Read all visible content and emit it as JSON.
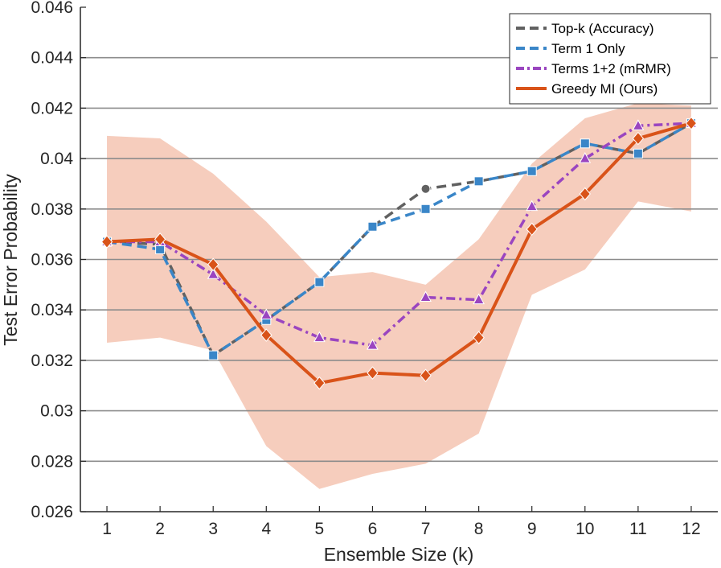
{
  "chart_data": {
    "type": "line",
    "title": "",
    "xlabel": "Ensemble Size (k)",
    "ylabel": "Test Error Probability",
    "xlim": [
      0.5,
      12.5
    ],
    "ylim": [
      0.026,
      0.046
    ],
    "xticks": [
      1,
      2,
      3,
      4,
      5,
      6,
      7,
      8,
      9,
      10,
      11,
      12
    ],
    "yticks": [
      0.026,
      0.028,
      0.03,
      0.032,
      0.034,
      0.036,
      0.038,
      0.04,
      0.042,
      0.044,
      0.046
    ],
    "ytick_labels": [
      "0.026",
      "0.028",
      "0.03",
      "0.032",
      "0.034",
      "0.036",
      "0.038",
      "0.04",
      "0.042",
      "0.044",
      "0.046"
    ],
    "grid": "y",
    "legend_position": "top-right",
    "band": {
      "name": "Greedy MI (Ours) spread",
      "color": "#f4c4b2",
      "x": [
        1,
        2,
        3,
        4,
        5,
        6,
        7,
        8,
        9,
        10,
        11,
        12
      ],
      "upper": [
        0.0409,
        0.0408,
        0.0394,
        0.0375,
        0.0353,
        0.0355,
        0.035,
        0.0368,
        0.0398,
        0.0416,
        0.0422,
        0.0421
      ],
      "lower": [
        0.0327,
        0.0329,
        0.0324,
        0.0286,
        0.0269,
        0.0275,
        0.0279,
        0.0291,
        0.0346,
        0.0356,
        0.0383,
        0.0379
      ]
    },
    "series": [
      {
        "name": "Top-k (Accuracy)",
        "color": "#616161",
        "dash": "dashed",
        "marker": "circle",
        "x": [
          1,
          2,
          3,
          4,
          5,
          6,
          7,
          8,
          9,
          10,
          11,
          12
        ],
        "values": [
          0.0367,
          0.0366,
          0.0322,
          0.0336,
          0.0351,
          0.0373,
          0.0388,
          0.0391,
          0.0395,
          0.0406,
          0.0402,
          0.0414
        ],
        "marker_indices": [
          6
        ]
      },
      {
        "name": "Term 1 Only",
        "color": "#3a86c8",
        "dash": "dashed",
        "marker": "square",
        "x": [
          1,
          2,
          3,
          4,
          5,
          6,
          7,
          8,
          9,
          10,
          11,
          12
        ],
        "values": [
          0.0367,
          0.0364,
          0.0322,
          0.0336,
          0.0351,
          0.0373,
          0.038,
          0.0391,
          0.0395,
          0.0406,
          0.0402,
          0.0414
        ],
        "marker_indices": [
          0,
          1,
          2,
          3,
          4,
          5,
          6,
          7,
          8,
          9,
          10,
          11
        ]
      },
      {
        "name": "Terms 1+2 (mRMR)",
        "color": "#9a45c0",
        "dash": "dashdot",
        "marker": "triangle",
        "x": [
          1,
          2,
          3,
          4,
          5,
          6,
          7,
          8,
          9,
          10,
          11,
          12
        ],
        "values": [
          0.0367,
          0.0367,
          0.0354,
          0.0338,
          0.0329,
          0.0326,
          0.0345,
          0.0344,
          0.0381,
          0.04,
          0.0413,
          0.0414
        ],
        "marker_indices": [
          0,
          1,
          2,
          3,
          4,
          5,
          6,
          7,
          8,
          9,
          10,
          11
        ]
      },
      {
        "name": "Greedy MI (Ours)",
        "color": "#d95319",
        "dash": "solid",
        "marker": "diamond",
        "x": [
          1,
          2,
          3,
          4,
          5,
          6,
          7,
          8,
          9,
          10,
          11,
          12
        ],
        "values": [
          0.0367,
          0.0368,
          0.0358,
          0.033,
          0.0311,
          0.0315,
          0.0314,
          0.0329,
          0.0372,
          0.0386,
          0.0408,
          0.0414
        ],
        "marker_indices": [
          0,
          1,
          2,
          3,
          4,
          5,
          6,
          7,
          8,
          9,
          10,
          11
        ]
      }
    ]
  }
}
